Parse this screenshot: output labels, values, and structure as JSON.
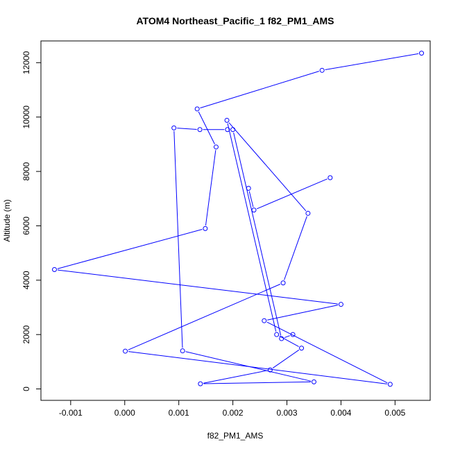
{
  "chart_data": {
    "type": "line",
    "title": "ATOM4 Northeast_Pacific_1 f82_PM1_AMS",
    "xlabel": "f82_PM1_AMS",
    "ylabel": "Altitude (m)",
    "xlim": [
      -0.00155,
      0.00565
    ],
    "ylim": [
      -420,
      12800
    ],
    "x_ticks": [
      -0.001,
      0.0,
      0.001,
      0.002,
      0.003,
      0.004,
      0.005
    ],
    "x_tick_labels": [
      "-0.001",
      "0.000",
      "0.001",
      "0.002",
      "0.003",
      "0.004",
      "0.005"
    ],
    "y_ticks": [
      0,
      2000,
      4000,
      6000,
      8000,
      10000,
      12000
    ],
    "y_tick_labels": [
      "0",
      "2000",
      "4000",
      "6000",
      "8000",
      "10000",
      "12000"
    ],
    "grid": false,
    "legend": "none",
    "marker": "open-circle",
    "color": "#0000ff",
    "series": [
      {
        "x": [
          0.00549,
          0.00365,
          0.00134,
          0.00169,
          0.00139,
          0.0019,
          0.00199,
          0.00339,
          0.00293,
          9e-05,
          -0.0013,
          0.004,
          0.00288,
          0.00327,
          0.00305,
          0.00285,
          0.00258,
          0.00228,
          0.00239,
          0.0038
        ],
        "y": [
          12350,
          11720,
          10300,
          8900,
          9530,
          9550,
          9500,
          6470,
          3900,
          1400,
          4400,
          3110,
          2000,
          1500,
          2000,
          1830,
          2500,
          7380,
          6580,
          7770
        ]
      },
      {
        "x": [
          0.00019,
          0.00144,
          0.00155,
          0.00169
        ],
        "y": [
          1390,
          5900,
          6000,
          6000
        ]
      }
    ],
    "points": [
      {
        "x": 0.00549,
        "y": 12350
      },
      {
        "x": 0.00365,
        "y": 11720
      },
      {
        "x": 0.00134,
        "y": 10300
      },
      {
        "x": 0.00169,
        "y": 8900
      },
      {
        "x": 0.00149,
        "y": 5900
      },
      {
        "x": -0.0013,
        "y": 4390
      },
      {
        "x": 0.004,
        "y": 3110
      },
      {
        "x": 0.00258,
        "y": 2510
      },
      {
        "x": 0.00491,
        "y": 170
      },
      {
        "x": 1e-05,
        "y": 1390
      },
      {
        "x": 0.00293,
        "y": 3900
      },
      {
        "x": 0.00339,
        "y": 6460
      },
      {
        "x": 0.00189,
        "y": 9880
      },
      {
        "x": 0.00281,
        "y": 2000
      },
      {
        "x": 0.00327,
        "y": 1500
      },
      {
        "x": 0.00269,
        "y": 700
      },
      {
        "x": 0.0014,
        "y": 190
      },
      {
        "x": 0.0035,
        "y": 260
      },
      {
        "x": 0.00107,
        "y": 1400
      },
      {
        "x": 0.00091,
        "y": 9600
      },
      {
        "x": 0.00139,
        "y": 9540
      },
      {
        "x": 0.0019,
        "y": 9540
      },
      {
        "x": 0.002,
        "y": 9540
      },
      {
        "x": 0.00229,
        "y": 7380
      },
      {
        "x": 0.00239,
        "y": 6580
      },
      {
        "x": 0.0038,
        "y": 7770
      },
      {
        "x": 0.0029,
        "y": 1850
      },
      {
        "x": 0.00311,
        "y": 2000
      }
    ],
    "path": [
      {
        "x": 0.0038,
        "y": 7770
      },
      {
        "x": 0.00239,
        "y": 6580
      },
      {
        "x": 0.00229,
        "y": 7380
      }
    ],
    "line_x": [
      0.00549,
      0.00365,
      0.00134,
      0.00169,
      0.00149,
      -0.0013,
      0.004,
      0.00258,
      0.00491,
      1e-05,
      0.00293,
      0.00339,
      0.00189,
      0.00281,
      0.00327,
      0.00269,
      0.0014,
      0.0035,
      0.00107,
      0.00091,
      0.00139,
      0.0019,
      0.002,
      0.0029,
      0.00311
    ],
    "line_y": [
      12350,
      11720,
      10300,
      8900,
      5900,
      4390,
      3110,
      2510,
      170,
      1390,
      3900,
      6460,
      9880,
      2000,
      1500,
      700,
      190,
      260,
      1400,
      9600,
      9540,
      9540,
      9540,
      1850,
      2000
    ]
  }
}
